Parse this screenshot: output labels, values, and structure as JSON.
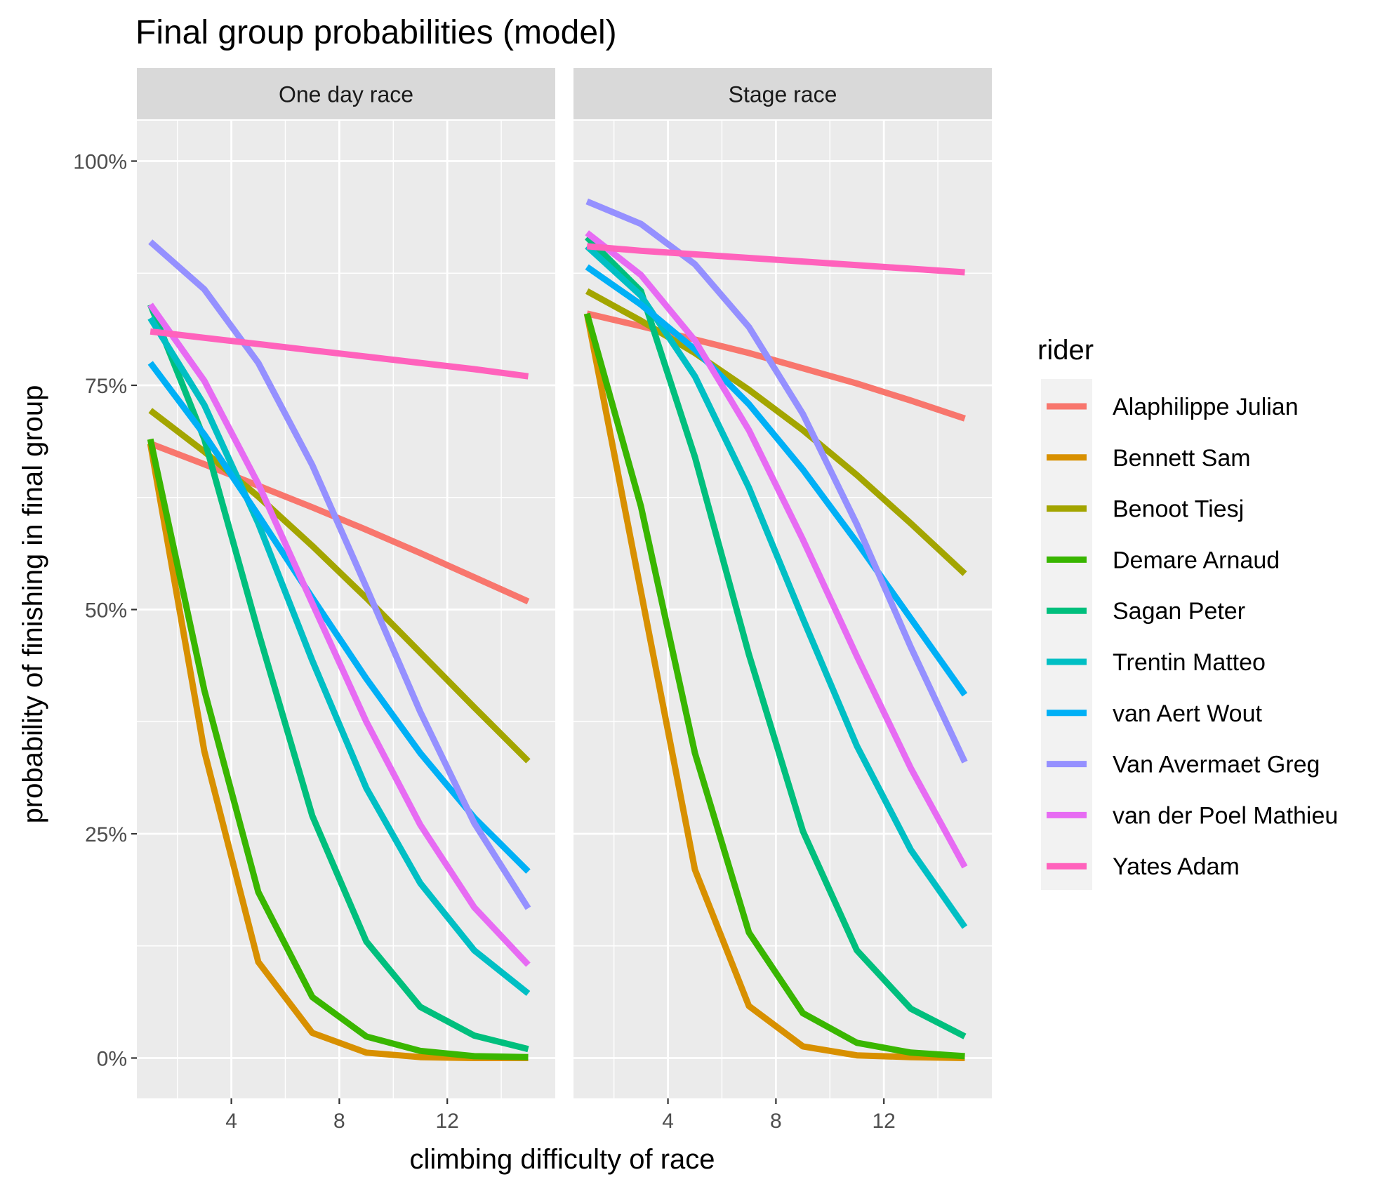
{
  "chart_data": {
    "type": "line",
    "title": "Final group probabilities (model)",
    "xlabel": "climbing difficulty of race",
    "ylabel": "probability of finishing in final group",
    "xlim": [
      0.5,
      16
    ],
    "ylim": [
      -0.045,
      1.045
    ],
    "x_ticks": [
      4,
      8,
      12
    ],
    "x_minor_ticks": [
      2,
      6,
      10,
      14
    ],
    "y_ticks": [
      0,
      0.25,
      0.5,
      0.75,
      1.0
    ],
    "y_tick_labels": [
      "0%",
      "25%",
      "50%",
      "75%",
      "100%"
    ],
    "grid": true,
    "legend": {
      "title": "rider",
      "position": "right"
    },
    "x": [
      1,
      3,
      5,
      7,
      9,
      11,
      13,
      15
    ],
    "panels": [
      {
        "label": "One day race",
        "series": [
          {
            "name": "Alaphilippe Julian",
            "color": "#F8766D",
            "values": [
              0.685,
              0.662,
              0.638,
              0.614,
              0.589,
              0.563,
              0.536,
              0.509
            ]
          },
          {
            "name": "Bennett Sam",
            "color": "#D89000",
            "values": [
              0.685,
              0.342,
              0.107,
              0.028,
              0.006,
              0.001,
              0.0,
              0.0
            ]
          },
          {
            "name": "Benoot Tiesj",
            "color": "#A3A500",
            "values": [
              0.722,
              0.676,
              0.626,
              0.571,
              0.513,
              0.452,
              0.391,
              0.331
            ]
          },
          {
            "name": "Demare Arnaud",
            "color": "#39B600",
            "values": [
              0.69,
              0.41,
              0.185,
              0.068,
              0.024,
              0.008,
              0.002,
              0.001
            ]
          },
          {
            "name": "Sagan Peter",
            "color": "#00BF7D",
            "values": [
              0.84,
              0.69,
              0.475,
              0.27,
              0.13,
              0.057,
              0.025,
              0.01
            ]
          },
          {
            "name": "Trentin Matteo",
            "color": "#00BFC4",
            "values": [
              0.825,
              0.728,
              0.596,
              0.443,
              0.301,
              0.195,
              0.12,
              0.072
            ]
          },
          {
            "name": "van Aert Wout",
            "color": "#00B0F6",
            "values": [
              0.775,
              0.695,
              0.605,
              0.513,
              0.423,
              0.34,
              0.268,
              0.208
            ]
          },
          {
            "name": "Van Avermaet Greg",
            "color": "#9590FF",
            "values": [
              0.91,
              0.857,
              0.775,
              0.661,
              0.525,
              0.386,
              0.262,
              0.167
            ]
          },
          {
            "name": "van der Poel Mathieu",
            "color": "#E76BF3",
            "values": [
              0.84,
              0.755,
              0.64,
              0.507,
              0.375,
              0.26,
              0.168,
              0.104
            ]
          },
          {
            "name": "Yates Adam",
            "color": "#FF62BC",
            "values": [
              0.81,
              0.803,
              0.796,
              0.789,
              0.782,
              0.775,
              0.768,
              0.76
            ]
          }
        ]
      },
      {
        "label": "Stage race",
        "series": [
          {
            "name": "Alaphilippe Julian",
            "color": "#F8766D",
            "values": [
              0.83,
              0.816,
              0.801,
              0.786,
              0.769,
              0.752,
              0.733,
              0.713
            ]
          },
          {
            "name": "Bennett Sam",
            "color": "#D89000",
            "values": [
              0.83,
              0.52,
              0.21,
              0.058,
              0.013,
              0.003,
              0.001,
              0.0
            ]
          },
          {
            "name": "Benoot Tiesj",
            "color": "#A3A500",
            "values": [
              0.855,
              0.822,
              0.786,
              0.745,
              0.7,
              0.65,
              0.596,
              0.54
            ]
          },
          {
            "name": "Demare Arnaud",
            "color": "#39B600",
            "values": [
              0.83,
              0.615,
              0.34,
              0.14,
              0.05,
              0.017,
              0.006,
              0.002
            ]
          },
          {
            "name": "Sagan Peter",
            "color": "#00BF7D",
            "values": [
              0.915,
              0.855,
              0.67,
              0.45,
              0.253,
              0.12,
              0.055,
              0.024
            ]
          },
          {
            "name": "Trentin Matteo",
            "color": "#00BFC4",
            "values": [
              0.905,
              0.85,
              0.76,
              0.636,
              0.49,
              0.348,
              0.232,
              0.146
            ]
          },
          {
            "name": "van Aert Wout",
            "color": "#00B0F6",
            "values": [
              0.882,
              0.84,
              0.79,
              0.729,
              0.656,
              0.575,
              0.49,
              0.405
            ]
          },
          {
            "name": "Van Avermaet Greg",
            "color": "#9590FF",
            "values": [
              0.955,
              0.93,
              0.885,
              0.815,
              0.718,
              0.595,
              0.458,
              0.33
            ]
          },
          {
            "name": "van der Poel Mathieu",
            "color": "#E76BF3",
            "values": [
              0.92,
              0.873,
              0.8,
              0.7,
              0.578,
              0.448,
              0.323,
              0.213
            ]
          },
          {
            "name": "Yates Adam",
            "color": "#FF62BC",
            "values": [
              0.905,
              0.9,
              0.896,
              0.892,
              0.888,
              0.884,
              0.88,
              0.876
            ]
          }
        ]
      }
    ]
  }
}
